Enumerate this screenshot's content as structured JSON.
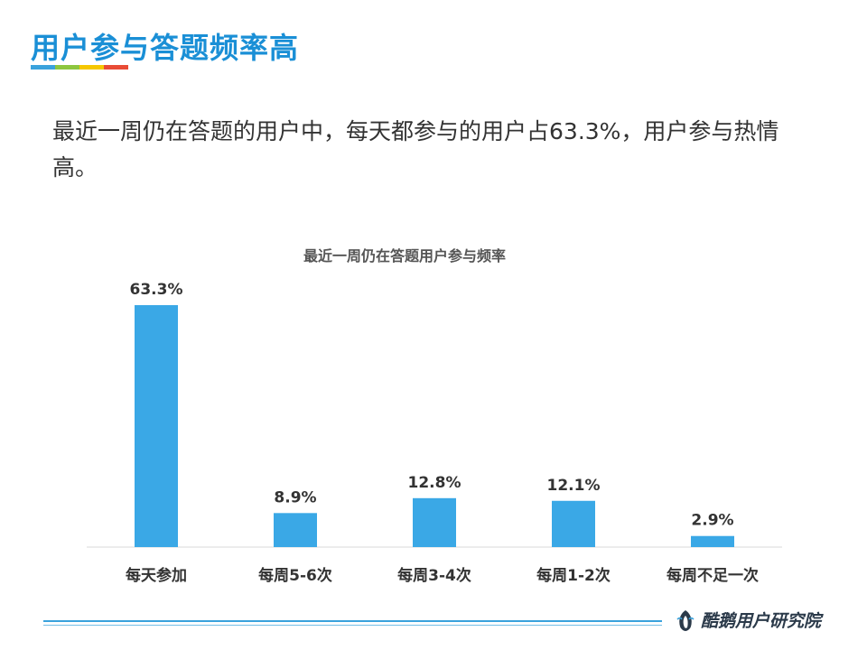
{
  "slide": {
    "title": "用户参与答题频率高",
    "underline_colors": [
      "#3aa2dc",
      "#8dc63f",
      "#f5c700",
      "#e94b35"
    ],
    "summary": "最近一周仍在答题的用户中，每天都参与的用户占63.3%，用户参与热情高。"
  },
  "chart_data": {
    "type": "bar",
    "title": "最近一周仍在答题用户参与频率",
    "categories": [
      "每天参加",
      "每周5-6次",
      "每周3-4次",
      "每周1-2次",
      "每周不足一次"
    ],
    "values": [
      63.3,
      8.9,
      12.8,
      12.1,
      2.9
    ],
    "value_labels": [
      "63.3%",
      "8.9%",
      "12.8%",
      "12.1%",
      "2.9%"
    ],
    "xlabel": "",
    "ylabel": "",
    "ylim": [
      0,
      63.3
    ],
    "grid": false,
    "legend": "none",
    "bar_color": "#3aa8e6"
  },
  "footer": {
    "brand": "酷鹅用户研究院",
    "line_color": "#3aa2dc"
  }
}
